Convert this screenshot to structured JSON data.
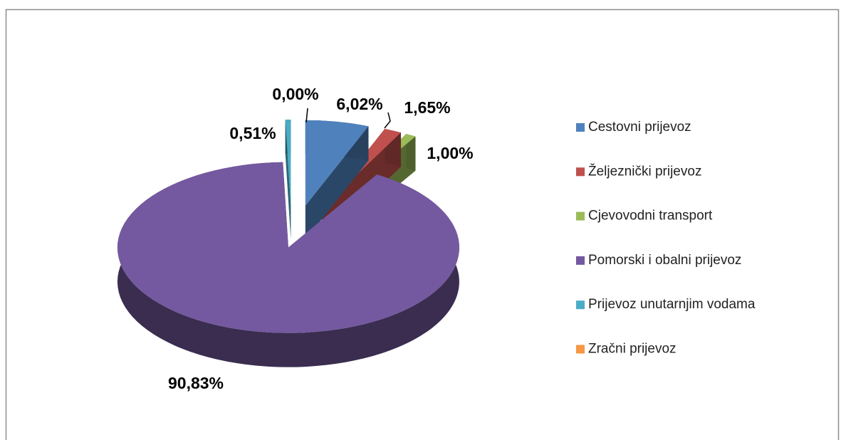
{
  "chart_data": {
    "type": "pie",
    "categories": [
      "Cestovni prijevoz",
      "Željeznički prijevoz",
      "Cjevovodni transport",
      "Pomorski i obalni prijevoz",
      "Prijevoz unutarnjim vodama",
      "Zračni prijevoz"
    ],
    "values": [
      6.02,
      1.65,
      1.0,
      90.83,
      0.51,
      0.0
    ],
    "value_labels": [
      "6,02%",
      "1,65%",
      "1,00%",
      "90,83%",
      "0,51%",
      "0,00%"
    ],
    "colors": [
      "#4f81bd",
      "#c0504d",
      "#9bbb59",
      "#7459a0",
      "#4bacc6",
      "#f79646"
    ],
    "legend": "right"
  }
}
